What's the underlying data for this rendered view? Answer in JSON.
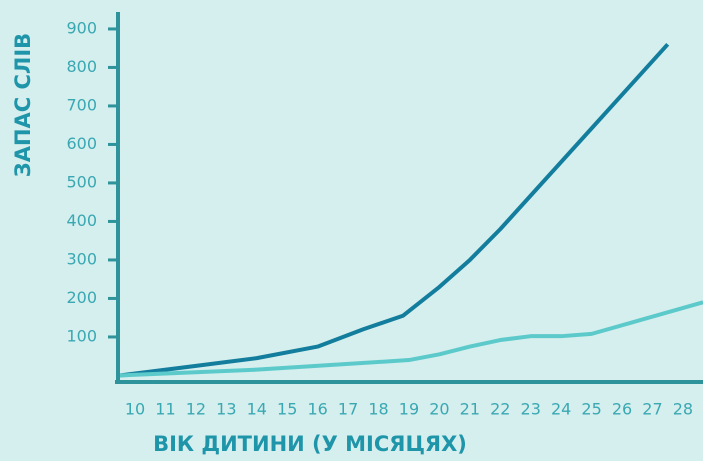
{
  "chart_data": {
    "type": "line",
    "xlabel": "ВІК ДИТИНИ (У МІСЯЦЯХ)",
    "ylabel": "ЗАПАС СЛІВ",
    "xlim": [
      9.44,
      28.66
    ],
    "ylim": [
      -17,
      944
    ],
    "xticks": [
      10,
      11,
      12,
      13,
      14,
      15,
      16,
      17,
      18,
      19,
      20,
      21,
      22,
      23,
      24,
      25,
      26,
      27,
      28
    ],
    "yticks": [
      100,
      200,
      300,
      400,
      500,
      600,
      700,
      800,
      900
    ],
    "axis_color": "#2f939c",
    "series": [
      {
        "color": "#127d9c",
        "x": [
          9.5,
          12,
          14,
          16,
          17.5,
          18.8,
          20,
          21,
          22,
          27.5
        ],
        "values": [
          0,
          25,
          45,
          75,
          120,
          155,
          230,
          300,
          380,
          860
        ]
      },
      {
        "color": "#5ccaca",
        "x": [
          9.5,
          14,
          19,
          20,
          21,
          22,
          23,
          24,
          25,
          28.66
        ],
        "values": [
          0,
          15,
          40,
          55,
          75,
          92,
          102,
          102,
          108,
          190
        ]
      }
    ]
  }
}
